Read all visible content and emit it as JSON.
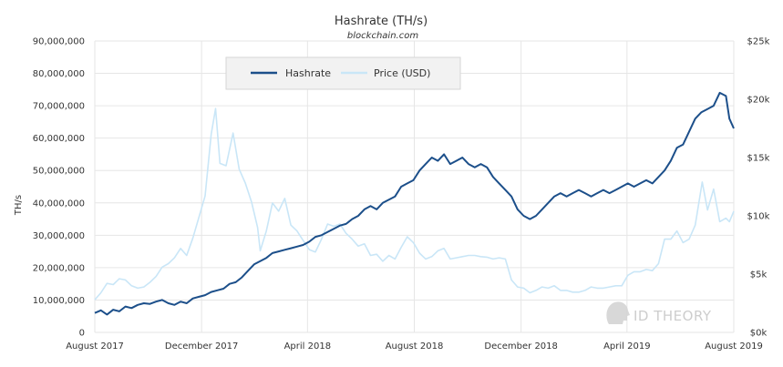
{
  "chart_data": {
    "type": "line",
    "title": "Hashrate (TH/s)",
    "subtitle": "blockchain.com",
    "ylabel": "TH/s",
    "y2label": "",
    "xlim": [
      "2017-08-01",
      "2019-08-01"
    ],
    "ylim": [
      0,
      90000000
    ],
    "y2lim": [
      0,
      25000
    ],
    "grid": true,
    "legend": "top-left",
    "x_ticks": [
      {
        "date": "2017-08-01",
        "label": "August 2017"
      },
      {
        "date": "2017-12-01",
        "label": "December 2017"
      },
      {
        "date": "2018-04-01",
        "label": "April 2018"
      },
      {
        "date": "2018-08-01",
        "label": "August 2018"
      },
      {
        "date": "2018-12-01",
        "label": "December 2018"
      },
      {
        "date": "2019-04-01",
        "label": "April 2019"
      },
      {
        "date": "2019-08-01",
        "label": "August 2019"
      }
    ],
    "y_ticks": [
      {
        "value": 0,
        "label": "0"
      },
      {
        "value": 10000000,
        "label": "10,000,000"
      },
      {
        "value": 20000000,
        "label": "20,000,000"
      },
      {
        "value": 30000000,
        "label": "30,000,000"
      },
      {
        "value": 40000000,
        "label": "40,000,000"
      },
      {
        "value": 50000000,
        "label": "50,000,000"
      },
      {
        "value": 60000000,
        "label": "60,000,000"
      },
      {
        "value": 70000000,
        "label": "70,000,000"
      },
      {
        "value": 80000000,
        "label": "80,000,000"
      },
      {
        "value": 90000000,
        "label": "90,000,000"
      }
    ],
    "y2_ticks": [
      {
        "value": 0,
        "label": "$0k"
      },
      {
        "value": 5000,
        "label": "$5k"
      },
      {
        "value": 10000,
        "label": "$10k"
      },
      {
        "value": 15000,
        "label": "$15k"
      },
      {
        "value": 20000,
        "label": "$20k"
      },
      {
        "value": 25000,
        "label": "$25k"
      }
    ],
    "series": [
      {
        "name": "Hashrate",
        "axis": "left",
        "color": "#1c4f8a",
        "points": [
          [
            "2017-08-01",
            6000000
          ],
          [
            "2017-08-08",
            6800000
          ],
          [
            "2017-08-15",
            5500000
          ],
          [
            "2017-08-22",
            7000000
          ],
          [
            "2017-08-29",
            6500000
          ],
          [
            "2017-09-05",
            8000000
          ],
          [
            "2017-09-12",
            7500000
          ],
          [
            "2017-09-19",
            8500000
          ],
          [
            "2017-09-26",
            9000000
          ],
          [
            "2017-10-03",
            8800000
          ],
          [
            "2017-10-10",
            9500000
          ],
          [
            "2017-10-17",
            10000000
          ],
          [
            "2017-10-24",
            9000000
          ],
          [
            "2017-10-31",
            8500000
          ],
          [
            "2017-11-07",
            9500000
          ],
          [
            "2017-11-14",
            9000000
          ],
          [
            "2017-11-21",
            10500000
          ],
          [
            "2017-11-28",
            11000000
          ],
          [
            "2017-12-05",
            11500000
          ],
          [
            "2017-12-12",
            12500000
          ],
          [
            "2017-12-19",
            13000000
          ],
          [
            "2017-12-26",
            13500000
          ],
          [
            "2018-01-02",
            15000000
          ],
          [
            "2018-01-09",
            15500000
          ],
          [
            "2018-01-16",
            17000000
          ],
          [
            "2018-01-23",
            19000000
          ],
          [
            "2018-01-30",
            21000000
          ],
          [
            "2018-02-06",
            22000000
          ],
          [
            "2018-02-13",
            23000000
          ],
          [
            "2018-02-20",
            24500000
          ],
          [
            "2018-02-27",
            25000000
          ],
          [
            "2018-03-06",
            25500000
          ],
          [
            "2018-03-13",
            26000000
          ],
          [
            "2018-03-20",
            26500000
          ],
          [
            "2018-03-27",
            27000000
          ],
          [
            "2018-04-03",
            28000000
          ],
          [
            "2018-04-10",
            29500000
          ],
          [
            "2018-04-17",
            30000000
          ],
          [
            "2018-04-24",
            31000000
          ],
          [
            "2018-05-01",
            32000000
          ],
          [
            "2018-05-08",
            33000000
          ],
          [
            "2018-05-15",
            33500000
          ],
          [
            "2018-05-22",
            35000000
          ],
          [
            "2018-05-29",
            36000000
          ],
          [
            "2018-06-05",
            38000000
          ],
          [
            "2018-06-12",
            39000000
          ],
          [
            "2018-06-19",
            38000000
          ],
          [
            "2018-06-26",
            40000000
          ],
          [
            "2018-07-03",
            41000000
          ],
          [
            "2018-07-10",
            42000000
          ],
          [
            "2018-07-17",
            45000000
          ],
          [
            "2018-07-24",
            46000000
          ],
          [
            "2018-07-31",
            47000000
          ],
          [
            "2018-08-07",
            50000000
          ],
          [
            "2018-08-14",
            52000000
          ],
          [
            "2018-08-21",
            54000000
          ],
          [
            "2018-08-28",
            53000000
          ],
          [
            "2018-09-04",
            55000000
          ],
          [
            "2018-09-11",
            52000000
          ],
          [
            "2018-09-18",
            53000000
          ],
          [
            "2018-09-25",
            54000000
          ],
          [
            "2018-10-02",
            52000000
          ],
          [
            "2018-10-09",
            51000000
          ],
          [
            "2018-10-16",
            52000000
          ],
          [
            "2018-10-23",
            51000000
          ],
          [
            "2018-10-30",
            48000000
          ],
          [
            "2018-11-06",
            46000000
          ],
          [
            "2018-11-13",
            44000000
          ],
          [
            "2018-11-20",
            42000000
          ],
          [
            "2018-11-27",
            38000000
          ],
          [
            "2018-12-04",
            36000000
          ],
          [
            "2018-12-11",
            35000000
          ],
          [
            "2018-12-18",
            36000000
          ],
          [
            "2018-12-25",
            38000000
          ],
          [
            "2019-01-01",
            40000000
          ],
          [
            "2019-01-08",
            42000000
          ],
          [
            "2019-01-15",
            43000000
          ],
          [
            "2019-01-22",
            42000000
          ],
          [
            "2019-01-29",
            43000000
          ],
          [
            "2019-02-05",
            44000000
          ],
          [
            "2019-02-12",
            43000000
          ],
          [
            "2019-02-19",
            42000000
          ],
          [
            "2019-02-26",
            43000000
          ],
          [
            "2019-03-05",
            44000000
          ],
          [
            "2019-03-12",
            43000000
          ],
          [
            "2019-03-19",
            44000000
          ],
          [
            "2019-03-26",
            45000000
          ],
          [
            "2019-04-02",
            46000000
          ],
          [
            "2019-04-09",
            45000000
          ],
          [
            "2019-04-16",
            46000000
          ],
          [
            "2019-04-23",
            47000000
          ],
          [
            "2019-04-30",
            46000000
          ],
          [
            "2019-05-07",
            48000000
          ],
          [
            "2019-05-14",
            50000000
          ],
          [
            "2019-05-21",
            53000000
          ],
          [
            "2019-05-28",
            57000000
          ],
          [
            "2019-06-04",
            58000000
          ],
          [
            "2019-06-11",
            62000000
          ],
          [
            "2019-06-18",
            66000000
          ],
          [
            "2019-06-25",
            68000000
          ],
          [
            "2019-07-02",
            69000000
          ],
          [
            "2019-07-09",
            70000000
          ],
          [
            "2019-07-16",
            74000000
          ],
          [
            "2019-07-23",
            73000000
          ],
          [
            "2019-07-27",
            66000000
          ],
          [
            "2019-08-01",
            63000000
          ]
        ]
      },
      {
        "name": "Price (USD)",
        "axis": "right",
        "color": "#c9e6f7",
        "points": [
          [
            "2017-08-01",
            2800
          ],
          [
            "2017-08-08",
            3400
          ],
          [
            "2017-08-15",
            4200
          ],
          [
            "2017-08-22",
            4100
          ],
          [
            "2017-08-29",
            4600
          ],
          [
            "2017-09-05",
            4500
          ],
          [
            "2017-09-12",
            4000
          ],
          [
            "2017-09-19",
            3800
          ],
          [
            "2017-09-26",
            3900
          ],
          [
            "2017-10-03",
            4300
          ],
          [
            "2017-10-10",
            4800
          ],
          [
            "2017-10-17",
            5600
          ],
          [
            "2017-10-24",
            5900
          ],
          [
            "2017-10-31",
            6400
          ],
          [
            "2017-11-07",
            7200
          ],
          [
            "2017-11-14",
            6600
          ],
          [
            "2017-11-21",
            8100
          ],
          [
            "2017-11-28",
            9900
          ],
          [
            "2017-12-05",
            11700
          ],
          [
            "2017-12-12",
            17000
          ],
          [
            "2017-12-17",
            19200
          ],
          [
            "2017-12-22",
            14500
          ],
          [
            "2017-12-29",
            14300
          ],
          [
            "2018-01-06",
            17100
          ],
          [
            "2018-01-13",
            14000
          ],
          [
            "2018-01-20",
            12800
          ],
          [
            "2018-01-27",
            11200
          ],
          [
            "2018-02-03",
            9000
          ],
          [
            "2018-02-06",
            7000
          ],
          [
            "2018-02-13",
            8700
          ],
          [
            "2018-02-20",
            11100
          ],
          [
            "2018-02-27",
            10400
          ],
          [
            "2018-03-06",
            11500
          ],
          [
            "2018-03-13",
            9200
          ],
          [
            "2018-03-20",
            8700
          ],
          [
            "2018-03-27",
            7900
          ],
          [
            "2018-04-03",
            7100
          ],
          [
            "2018-04-10",
            6900
          ],
          [
            "2018-04-17",
            8000
          ],
          [
            "2018-04-24",
            9300
          ],
          [
            "2018-05-01",
            9100
          ],
          [
            "2018-05-08",
            9300
          ],
          [
            "2018-05-15",
            8500
          ],
          [
            "2018-05-22",
            8000
          ],
          [
            "2018-05-29",
            7400
          ],
          [
            "2018-06-05",
            7600
          ],
          [
            "2018-06-12",
            6600
          ],
          [
            "2018-06-19",
            6700
          ],
          [
            "2018-06-26",
            6100
          ],
          [
            "2018-07-03",
            6600
          ],
          [
            "2018-07-10",
            6300
          ],
          [
            "2018-07-17",
            7300
          ],
          [
            "2018-07-24",
            8200
          ],
          [
            "2018-07-31",
            7700
          ],
          [
            "2018-08-07",
            6800
          ],
          [
            "2018-08-14",
            6300
          ],
          [
            "2018-08-21",
            6500
          ],
          [
            "2018-08-28",
            7000
          ],
          [
            "2018-09-04",
            7200
          ],
          [
            "2018-09-11",
            6300
          ],
          [
            "2018-09-18",
            6400
          ],
          [
            "2018-09-25",
            6500
          ],
          [
            "2018-10-02",
            6600
          ],
          [
            "2018-10-09",
            6600
          ],
          [
            "2018-10-16",
            6500
          ],
          [
            "2018-10-23",
            6450
          ],
          [
            "2018-10-30",
            6300
          ],
          [
            "2018-11-06",
            6400
          ],
          [
            "2018-11-13",
            6300
          ],
          [
            "2018-11-20",
            4500
          ],
          [
            "2018-11-27",
            3900
          ],
          [
            "2018-12-04",
            3800
          ],
          [
            "2018-12-11",
            3400
          ],
          [
            "2018-12-18",
            3600
          ],
          [
            "2018-12-25",
            3900
          ],
          [
            "2019-01-01",
            3800
          ],
          [
            "2019-01-08",
            4000
          ],
          [
            "2019-01-15",
            3600
          ],
          [
            "2019-01-22",
            3600
          ],
          [
            "2019-01-29",
            3450
          ],
          [
            "2019-02-05",
            3450
          ],
          [
            "2019-02-12",
            3600
          ],
          [
            "2019-02-19",
            3900
          ],
          [
            "2019-02-26",
            3800
          ],
          [
            "2019-03-05",
            3800
          ],
          [
            "2019-03-12",
            3900
          ],
          [
            "2019-03-19",
            4000
          ],
          [
            "2019-03-26",
            4000
          ],
          [
            "2019-04-02",
            4900
          ],
          [
            "2019-04-09",
            5200
          ],
          [
            "2019-04-16",
            5200
          ],
          [
            "2019-04-23",
            5400
          ],
          [
            "2019-04-30",
            5300
          ],
          [
            "2019-05-07",
            5900
          ],
          [
            "2019-05-14",
            8000
          ],
          [
            "2019-05-21",
            8000
          ],
          [
            "2019-05-28",
            8700
          ],
          [
            "2019-06-04",
            7700
          ],
          [
            "2019-06-11",
            8000
          ],
          [
            "2019-06-18",
            9200
          ],
          [
            "2019-06-26",
            12900
          ],
          [
            "2019-07-02",
            10500
          ],
          [
            "2019-07-09",
            12300
          ],
          [
            "2019-07-16",
            9500
          ],
          [
            "2019-07-23",
            9800
          ],
          [
            "2019-07-27",
            9500
          ],
          [
            "2019-08-01",
            10400
          ]
        ]
      }
    ]
  },
  "watermark": {
    "text": "ID THEORY",
    "icon": "head-profile-icon"
  }
}
